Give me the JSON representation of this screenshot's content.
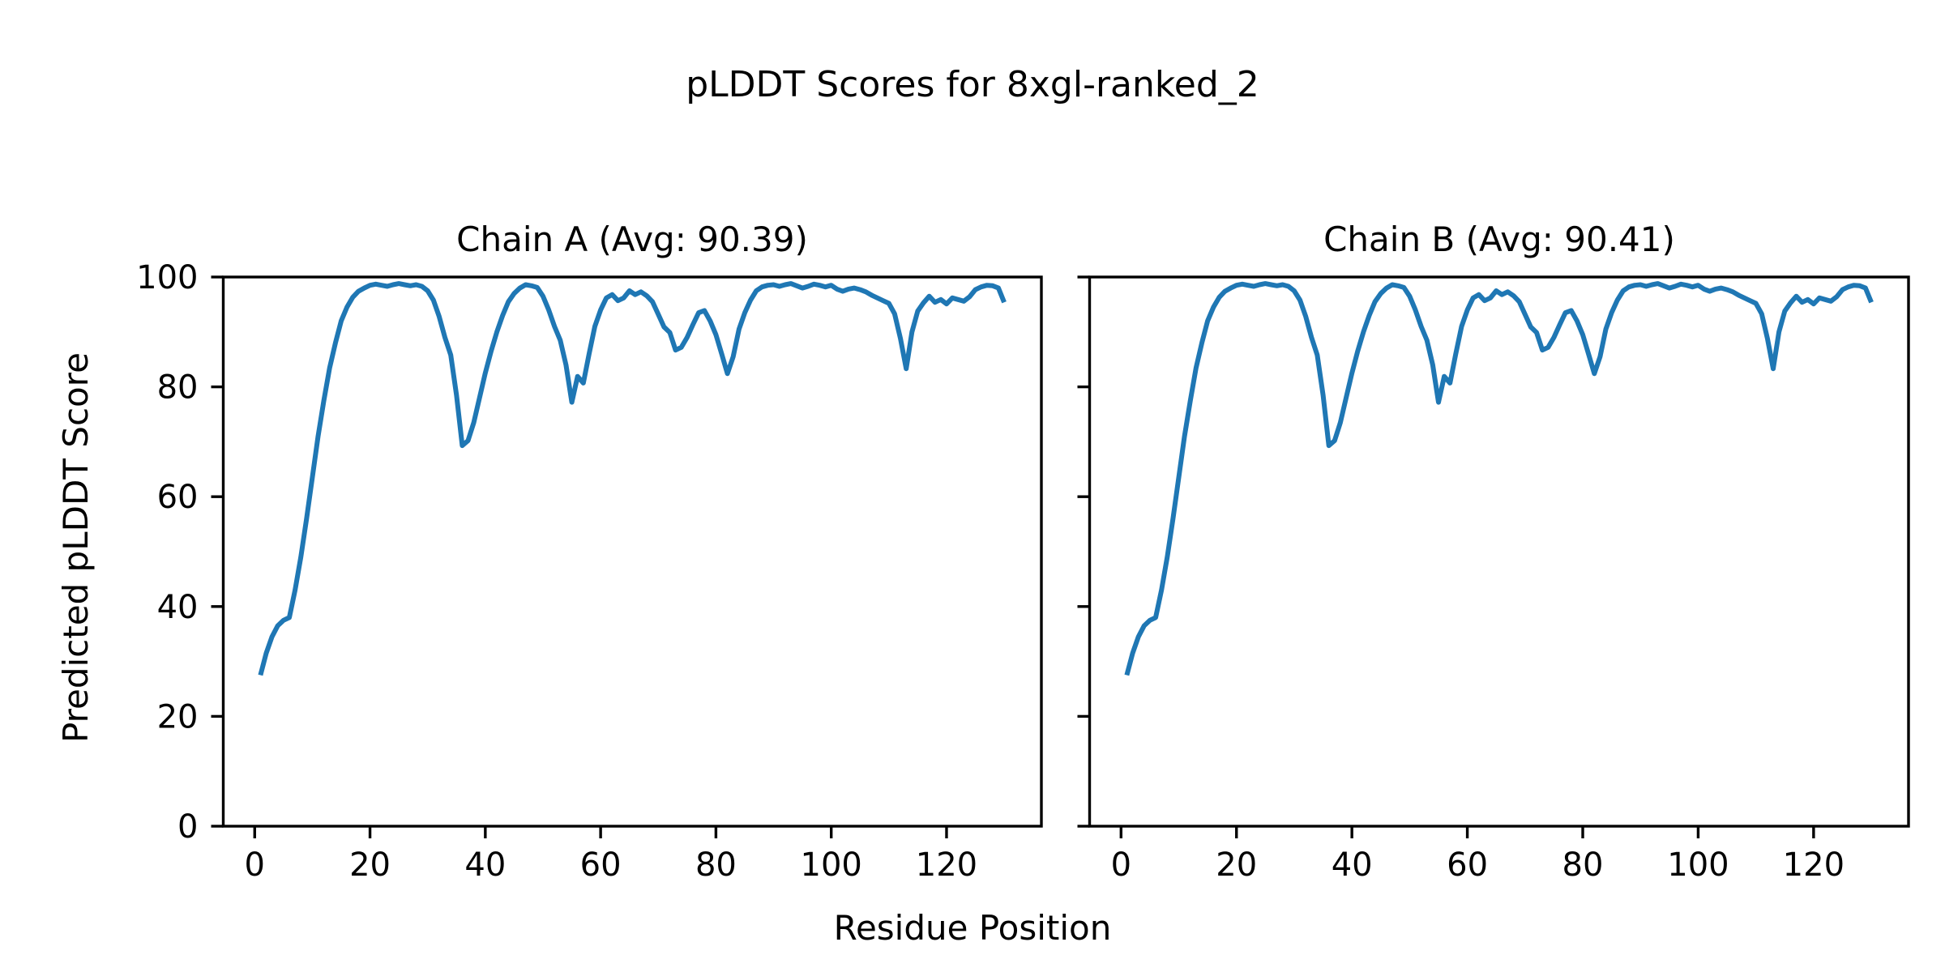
{
  "figure": {
    "title": "pLDDT Scores for 8xgl-ranked_2",
    "xlabel": "Residue Position",
    "ylabel": "Predicted pLDDT Score",
    "background": "#ffffff",
    "text_color": "#000000",
    "line_color": "#1f77b4"
  },
  "chart_data": [
    {
      "type": "line",
      "title": "Chain A (Avg: 90.39)",
      "name": "Chain A",
      "avg_label": "90.39",
      "xlabel": "Residue Position",
      "ylabel": "Predicted pLDDT Score",
      "line_color": "#1f77b4",
      "grid": false,
      "legend": null,
      "xlim": [
        -5.45,
        136.45
      ],
      "ylim": [
        0,
        100
      ],
      "xticks": [
        0,
        20,
        40,
        60,
        80,
        100,
        120
      ],
      "yticks": [
        0,
        20,
        40,
        60,
        80,
        100
      ],
      "x_start": 1,
      "values": [
        27.5,
        31.5,
        34.5,
        36.5,
        37.5,
        38.0,
        43.0,
        49.0,
        56.0,
        63.5,
        71.0,
        77.5,
        83.5,
        88.0,
        92.0,
        94.5,
        96.3,
        97.4,
        98.0,
        98.5,
        98.7,
        98.5,
        98.3,
        98.6,
        98.8,
        98.6,
        98.4,
        98.6,
        98.3,
        97.5,
        95.8,
        92.8,
        89.0,
        85.8,
        78.5,
        69.3,
        70.2,
        73.5,
        78.0,
        82.5,
        86.5,
        90.0,
        93.0,
        95.5,
        97.0,
        98.0,
        98.6,
        98.4,
        98.1,
        96.5,
        94.0,
        91.0,
        88.5,
        84.0,
        77.2,
        81.9,
        80.7,
        86.0,
        91.0,
        94.0,
        96.2,
        96.8,
        95.7,
        96.2,
        97.5,
        96.8,
        97.3,
        96.6,
        95.5,
        93.2,
        90.9,
        89.9,
        86.7,
        87.2,
        89.0,
        91.3,
        93.5,
        93.9,
        92.0,
        89.5,
        86.0,
        82.4,
        85.5,
        90.5,
        93.5,
        95.8,
        97.5,
        98.2,
        98.5,
        98.6,
        98.3,
        98.6,
        98.8,
        98.4,
        98.0,
        98.3,
        98.7,
        98.5,
        98.2,
        98.5,
        97.8,
        97.4,
        97.8,
        98.0,
        97.7,
        97.3,
        96.7,
        96.2,
        95.7,
        95.2,
        93.3,
        88.8,
        83.3,
        90.0,
        93.8,
        95.3,
        96.5,
        95.4,
        95.9,
        95.1,
        96.2,
        95.9,
        95.6,
        96.4,
        97.7,
        98.2,
        98.5,
        98.4,
        98.0,
        95.4
      ]
    },
    {
      "type": "line",
      "title": "Chain B (Avg: 90.41)",
      "name": "Chain B",
      "avg_label": "90.41",
      "xlabel": "Residue Position",
      "ylabel": "Predicted pLDDT Score",
      "line_color": "#1f77b4",
      "grid": false,
      "legend": null,
      "xlim": [
        -5.45,
        136.45
      ],
      "ylim": [
        0,
        100
      ],
      "xticks": [
        0,
        20,
        40,
        60,
        80,
        100,
        120
      ],
      "yticks": [
        0,
        20,
        40,
        60,
        80,
        100
      ],
      "x_start": 1,
      "values": [
        27.5,
        31.5,
        34.5,
        36.5,
        37.5,
        38.0,
        43.0,
        49.0,
        56.0,
        63.5,
        71.0,
        77.5,
        83.5,
        88.0,
        92.0,
        94.5,
        96.3,
        97.4,
        98.0,
        98.5,
        98.7,
        98.5,
        98.3,
        98.6,
        98.8,
        98.6,
        98.4,
        98.6,
        98.3,
        97.5,
        95.8,
        92.8,
        89.0,
        85.8,
        78.5,
        69.3,
        70.2,
        73.5,
        78.0,
        82.5,
        86.5,
        90.0,
        93.0,
        95.5,
        97.0,
        98.0,
        98.6,
        98.4,
        98.1,
        96.5,
        94.0,
        91.0,
        88.5,
        84.0,
        77.2,
        81.9,
        80.7,
        86.0,
        91.0,
        94.0,
        96.2,
        96.8,
        95.7,
        96.2,
        97.5,
        96.8,
        97.3,
        96.6,
        95.5,
        93.2,
        90.9,
        89.9,
        86.7,
        87.2,
        89.0,
        91.3,
        93.5,
        93.9,
        92.0,
        89.5,
        86.0,
        82.4,
        85.5,
        90.5,
        93.5,
        95.8,
        97.5,
        98.2,
        98.5,
        98.6,
        98.3,
        98.6,
        98.8,
        98.4,
        98.0,
        98.3,
        98.7,
        98.5,
        98.2,
        98.5,
        97.8,
        97.4,
        97.8,
        98.0,
        97.7,
        97.3,
        96.7,
        96.2,
        95.7,
        95.2,
        93.3,
        88.8,
        83.3,
        90.0,
        93.8,
        95.3,
        96.5,
        95.4,
        95.9,
        95.1,
        96.2,
        95.9,
        95.6,
        96.4,
        97.7,
        98.2,
        98.5,
        98.4,
        98.0,
        95.4
      ]
    }
  ]
}
